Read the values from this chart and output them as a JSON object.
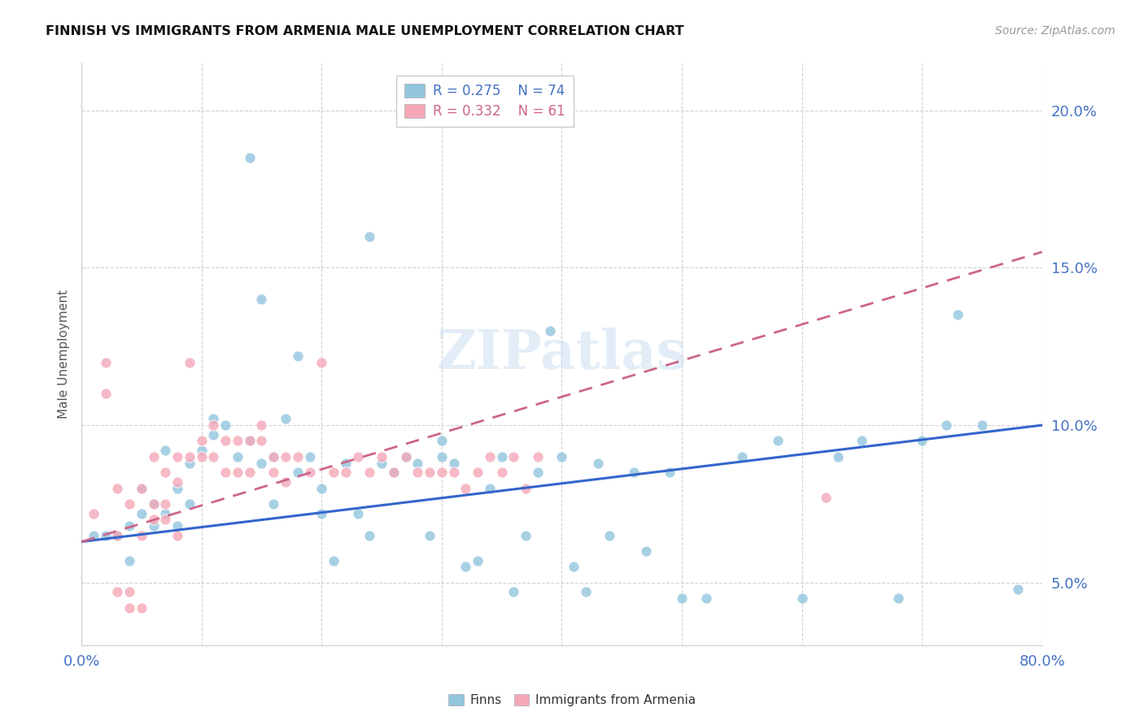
{
  "title": "FINNISH VS IMMIGRANTS FROM ARMENIA MALE UNEMPLOYMENT CORRELATION CHART",
  "source": "Source: ZipAtlas.com",
  "ylabel": "Male Unemployment",
  "xlim": [
    0.0,
    0.8
  ],
  "ylim": [
    0.03,
    0.215
  ],
  "yticks": [
    0.05,
    0.1,
    0.15,
    0.2
  ],
  "ytick_labels": [
    "5.0%",
    "10.0%",
    "15.0%",
    "20.0%"
  ],
  "xticks": [
    0.0,
    0.1,
    0.2,
    0.3,
    0.4,
    0.5,
    0.6,
    0.7,
    0.8
  ],
  "xtick_labels": [
    "0.0%",
    "",
    "",
    "",
    "",
    "",
    "",
    "",
    "80.0%"
  ],
  "color_finns": "#92c5de",
  "color_armenia": "#f4a8b8",
  "color_trendline_finns": "#3366cc",
  "color_trendline_armenia": "#cc6688",
  "color_axis_text": "#4472c4",
  "watermark": "ZIPatlas",
  "legend_box_color": "#eeeeee",
  "finns_line_start_y": 0.063,
  "finns_line_end_y": 0.1,
  "armenia_line_start_y": 0.063,
  "armenia_line_end_y": 0.155,
  "finns_x": [
    0.01,
    0.02,
    0.03,
    0.04,
    0.04,
    0.05,
    0.05,
    0.06,
    0.06,
    0.07,
    0.07,
    0.08,
    0.08,
    0.09,
    0.09,
    0.1,
    0.11,
    0.11,
    0.12,
    0.13,
    0.14,
    0.14,
    0.15,
    0.15,
    0.16,
    0.16,
    0.17,
    0.18,
    0.18,
    0.19,
    0.2,
    0.2,
    0.21,
    0.22,
    0.23,
    0.24,
    0.24,
    0.25,
    0.26,
    0.27,
    0.28,
    0.29,
    0.3,
    0.3,
    0.31,
    0.32,
    0.33,
    0.34,
    0.35,
    0.36,
    0.37,
    0.38,
    0.39,
    0.4,
    0.41,
    0.42,
    0.43,
    0.44,
    0.46,
    0.47,
    0.49,
    0.5,
    0.52,
    0.55,
    0.58,
    0.6,
    0.63,
    0.65,
    0.68,
    0.7,
    0.72,
    0.73,
    0.75,
    0.78
  ],
  "finns_y": [
    0.065,
    0.065,
    0.065,
    0.068,
    0.057,
    0.072,
    0.08,
    0.068,
    0.075,
    0.072,
    0.092,
    0.068,
    0.08,
    0.075,
    0.088,
    0.092,
    0.102,
    0.097,
    0.1,
    0.09,
    0.185,
    0.095,
    0.14,
    0.088,
    0.075,
    0.09,
    0.102,
    0.122,
    0.085,
    0.09,
    0.08,
    0.072,
    0.057,
    0.088,
    0.072,
    0.065,
    0.16,
    0.088,
    0.085,
    0.09,
    0.088,
    0.065,
    0.09,
    0.095,
    0.088,
    0.055,
    0.057,
    0.08,
    0.09,
    0.047,
    0.065,
    0.085,
    0.13,
    0.09,
    0.055,
    0.047,
    0.088,
    0.065,
    0.085,
    0.06,
    0.085,
    0.045,
    0.045,
    0.09,
    0.095,
    0.045,
    0.09,
    0.095,
    0.045,
    0.095,
    0.1,
    0.135,
    0.1,
    0.048
  ],
  "armenia_x": [
    0.01,
    0.02,
    0.02,
    0.03,
    0.03,
    0.03,
    0.04,
    0.04,
    0.04,
    0.05,
    0.05,
    0.05,
    0.06,
    0.06,
    0.06,
    0.07,
    0.07,
    0.07,
    0.08,
    0.08,
    0.08,
    0.09,
    0.09,
    0.1,
    0.1,
    0.11,
    0.11,
    0.12,
    0.12,
    0.13,
    0.13,
    0.14,
    0.14,
    0.15,
    0.15,
    0.16,
    0.16,
    0.17,
    0.17,
    0.18,
    0.19,
    0.2,
    0.21,
    0.22,
    0.23,
    0.24,
    0.25,
    0.26,
    0.27,
    0.28,
    0.29,
    0.3,
    0.31,
    0.32,
    0.33,
    0.34,
    0.35,
    0.36,
    0.37,
    0.38,
    0.62
  ],
  "armenia_y": [
    0.072,
    0.12,
    0.11,
    0.08,
    0.065,
    0.047,
    0.075,
    0.047,
    0.042,
    0.08,
    0.065,
    0.042,
    0.09,
    0.075,
    0.07,
    0.085,
    0.075,
    0.07,
    0.09,
    0.082,
    0.065,
    0.12,
    0.09,
    0.095,
    0.09,
    0.1,
    0.09,
    0.095,
    0.085,
    0.085,
    0.095,
    0.085,
    0.095,
    0.1,
    0.095,
    0.085,
    0.09,
    0.09,
    0.082,
    0.09,
    0.085,
    0.12,
    0.085,
    0.085,
    0.09,
    0.085,
    0.09,
    0.085,
    0.09,
    0.085,
    0.085,
    0.085,
    0.085,
    0.08,
    0.085,
    0.09,
    0.085,
    0.09,
    0.08,
    0.09,
    0.077
  ]
}
